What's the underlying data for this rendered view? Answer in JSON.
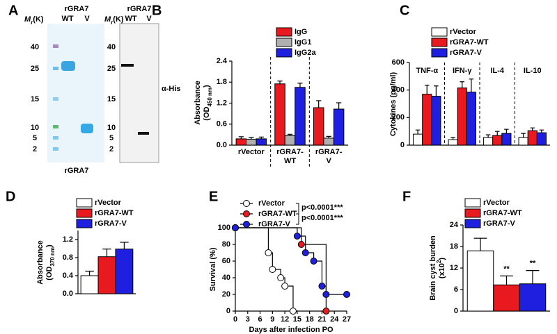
{
  "gel": {
    "letter": "A",
    "protein": "rGRA7",
    "lanes": [
      "WT",
      "V"
    ],
    "mr": [
      "M",
      "r",
      "(K)"
    ],
    "markers": [
      40,
      25,
      15,
      10,
      5,
      2
    ],
    "caption": "rGRA7",
    "blot_protein": "rGRA7",
    "blot_lanes": [
      "WT",
      "V"
    ],
    "blot_mr": [
      "M",
      "r",
      "(K)"
    ],
    "blot_markers": [
      40,
      25,
      15,
      10,
      5,
      2
    ],
    "antibody": "α-His"
  },
  "chart_data": [
    {
      "type": "bar",
      "panel": "B",
      "categories": [
        [
          "rVector"
        ],
        [
          "rGRA7-",
          "WT"
        ],
        [
          "rGRA7-",
          "V"
        ]
      ],
      "series": [
        {
          "name": "IgG",
          "color": "#e8191f",
          "values": [
            0.18,
            1.75,
            1.07
          ],
          "errors": [
            0.06,
            0.08,
            0.2
          ]
        },
        {
          "name": "IgG1",
          "color": "#b0b0b0",
          "values": [
            0.17,
            0.27,
            0.2
          ],
          "errors": [
            0.05,
            0.04,
            0.05
          ]
        },
        {
          "name": "IgG2a",
          "color": "#1f1fe0",
          "values": [
            0.18,
            1.65,
            1.03
          ],
          "errors": [
            0.05,
            0.12,
            0.18
          ]
        }
      ],
      "ylabel": [
        [
          "Absorbance"
        ],
        [
          "(OD",
          "450 nm",
          ")"
        ]
      ],
      "ylabel_script": "sub",
      "ylim": [
        0,
        2.4
      ],
      "yticks": [
        {
          "value": 0,
          "label": "0.0"
        },
        0.6,
        1.2,
        1.8,
        2.4
      ],
      "separators": true
    },
    {
      "type": "bar",
      "panel": "C",
      "categories": [
        [
          "TNF-α"
        ],
        [
          "IFN-γ"
        ],
        [
          "IL-4"
        ],
        [
          "IL-10"
        ]
      ],
      "series": [
        {
          "name": "rVector",
          "color": "#ffffff",
          "values": [
            80,
            40,
            55,
            55
          ],
          "errors": [
            30,
            15,
            20,
            30
          ]
        },
        {
          "name": "rGRA7-WT",
          "color": "#e8191f",
          "values": [
            370,
            415,
            70,
            105
          ],
          "errors": [
            65,
            45,
            30,
            20
          ]
        },
        {
          "name": "rGRA7-V",
          "color": "#1f1fe0",
          "values": [
            355,
            385,
            85,
            90
          ],
          "errors": [
            75,
            95,
            30,
            20
          ]
        }
      ],
      "ylabel": [
        [
          "Cytokines (pg/ml)"
        ]
      ],
      "ylim": [
        0,
        600
      ],
      "yticks": [
        0,
        200,
        400,
        600
      ],
      "separators": true,
      "category_labels_top": true
    },
    {
      "type": "bar",
      "panel": "D",
      "categories": [
        null
      ],
      "series": [
        {
          "name": "rVector",
          "color": "#ffffff",
          "values": [
            0.4
          ],
          "errors": [
            0.1
          ]
        },
        {
          "name": "rGRA7-WT",
          "color": "#e8191f",
          "values": [
            0.82
          ],
          "errors": [
            0.17
          ]
        },
        {
          "name": "rGRA7-V",
          "color": "#1f1fe0",
          "values": [
            0.99
          ],
          "errors": [
            0.15
          ]
        }
      ],
      "ylabel": [
        [
          "Absorbance"
        ],
        [
          "(OD",
          "370 nm",
          ")"
        ]
      ],
      "ylabel_script": "sub",
      "ylim": [
        0,
        1.4
      ],
      "yticks": [
        {
          "value": 0,
          "label": "0.0"
        },
        0.4,
        0.8,
        1.2
      ]
    },
    {
      "type": "step",
      "panel": "E",
      "series": [
        {
          "name": "rVector",
          "color": "#ffffff",
          "x": [
            0,
            8,
            9,
            11,
            12,
            14
          ],
          "values": [
            100,
            70,
            50,
            40,
            30,
            0
          ]
        },
        {
          "name": "rGRA7-WT",
          "color": "#e8191f",
          "x": [
            0,
            16,
            22
          ],
          "values": [
            100,
            80,
            0
          ]
        },
        {
          "name": "rGRA7-V",
          "color": "#1f1fe0",
          "x": [
            0,
            15,
            17,
            19,
            21,
            22,
            27
          ],
          "values": [
            100,
            90,
            70,
            60,
            30,
            20,
            20
          ]
        }
      ],
      "ylabel": [
        [
          "Survival (%)"
        ]
      ],
      "xlabel": "Days after infection PO",
      "xlim": [
        0,
        27
      ],
      "xticks": [
        0,
        3,
        6,
        9,
        12,
        15,
        18,
        21,
        24,
        27
      ],
      "ylim": [
        0,
        100
      ],
      "yticks": [
        0,
        20,
        40,
        60,
        80,
        100
      ],
      "annotations": [
        "p<0.0001***",
        "p<0.0001***"
      ]
    },
    {
      "type": "bar",
      "panel": "F",
      "categories": [
        null
      ],
      "series": [
        {
          "name": "rVector",
          "color": "#ffffff",
          "values": [
            16.8
          ],
          "errors": [
            3.5
          ]
        },
        {
          "name": "rGRA7-WT",
          "color": "#e8191f",
          "values": [
            7.3
          ],
          "errors": [
            2.5
          ]
        },
        {
          "name": "rGRA7-V",
          "color": "#1f1fe0",
          "values": [
            7.6
          ],
          "errors": [
            3.7
          ]
        }
      ],
      "ylabel": [
        [
          "Brain cyst burden"
        ],
        [
          "(x10",
          "2",
          ")"
        ]
      ],
      "ylabel_script": "super",
      "ylim": [
        0,
        24
      ],
      "yticks": [
        0,
        6,
        12,
        18,
        24
      ],
      "annotations": [
        "**",
        "**"
      ]
    }
  ]
}
